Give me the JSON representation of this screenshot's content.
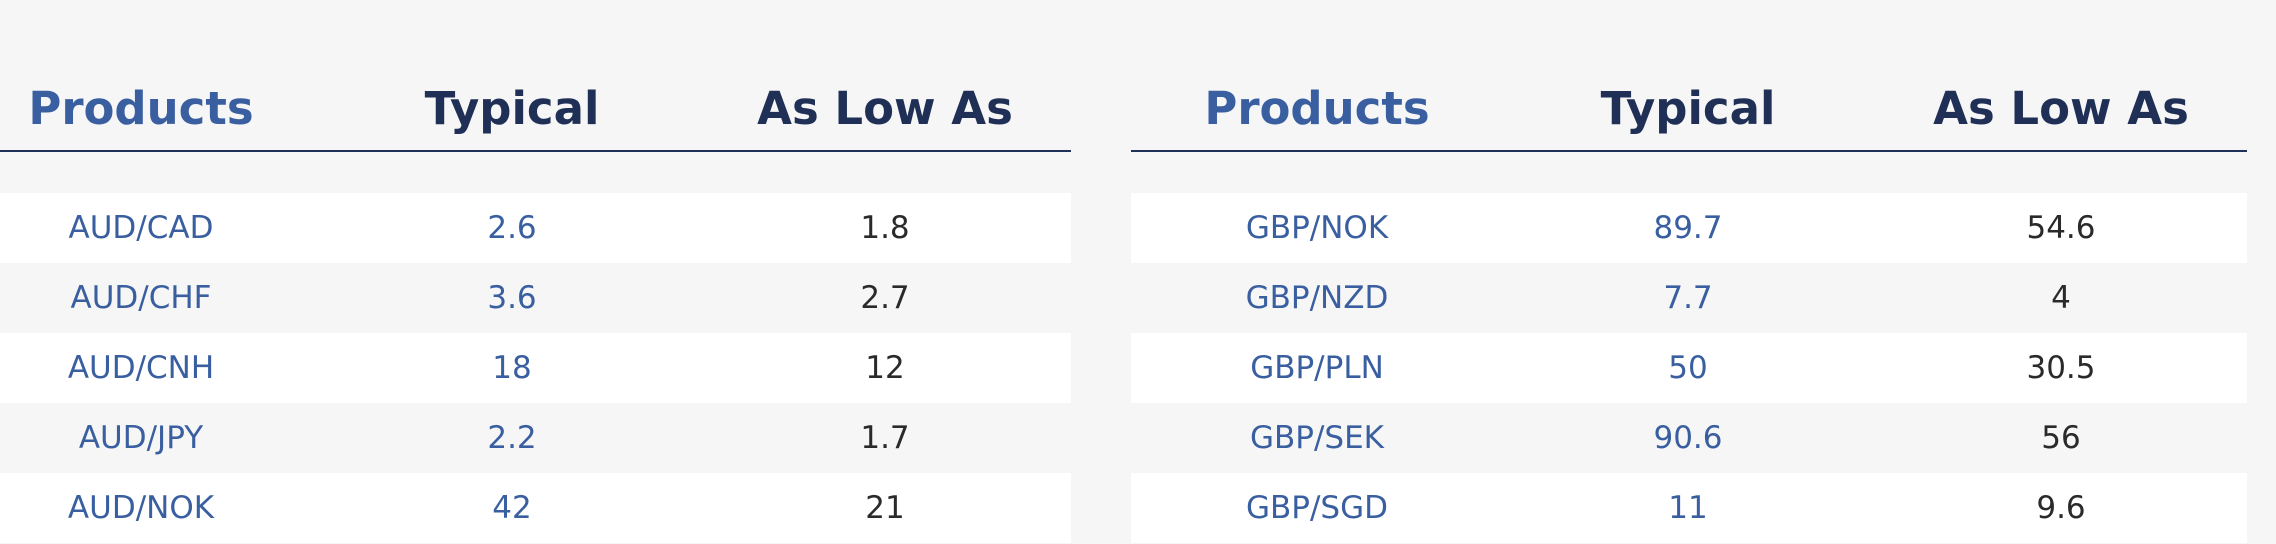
{
  "tables": [
    {
      "headers": [
        "Products",
        "Typical",
        "As Low As"
      ],
      "rows": [
        [
          "AUD/CAD",
          2.6,
          1.8
        ],
        [
          "AUD/CHF",
          3.6,
          2.7
        ],
        [
          "AUD/CNH",
          18,
          12
        ],
        [
          "AUD/JPY",
          2.2,
          1.7
        ],
        [
          "AUD/NOK",
          42,
          21
        ]
      ]
    },
    {
      "headers": [
        "Products",
        "Typical",
        "As Low As"
      ],
      "rows": [
        [
          "GBP/NOK",
          89.7,
          54.6
        ],
        [
          "GBP/NZD",
          7.7,
          4
        ],
        [
          "GBP/PLN",
          50,
          30.5
        ],
        [
          "GBP/SEK",
          90.6,
          56
        ],
        [
          "GBP/SGD",
          11,
          9.6
        ]
      ]
    }
  ]
}
